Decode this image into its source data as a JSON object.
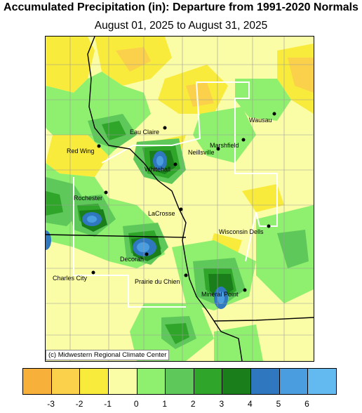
{
  "title": "Accumulated Precipitation (in): Departure from 1991-2020 Normals",
  "subtitle": "August 01, 2025 to August 31, 2025",
  "credit": "(c) Midwestern Regional Climate Center",
  "cities": [
    {
      "name": "Wausau"
    },
    {
      "name": "Eau Claire"
    },
    {
      "name": "Marshfield"
    },
    {
      "name": "Red Wing"
    },
    {
      "name": "Neillsville"
    },
    {
      "name": "Whitehall"
    },
    {
      "name": "Rochester"
    },
    {
      "name": "LaCrosse"
    },
    {
      "name": "Wisconsin Dells"
    },
    {
      "name": "Decorah"
    },
    {
      "name": "Charles City"
    },
    {
      "name": "Prairie du Chien"
    },
    {
      "name": "Mineral Point"
    }
  ],
  "legend": {
    "colors": [
      "#f7b03a",
      "#fbd04a",
      "#f9eb3c",
      "#fbfca6",
      "#8ef06e",
      "#5ec85a",
      "#2fa52a",
      "#1a7f1a",
      "#2f78c0",
      "#4a9ee0",
      "#63baf0"
    ],
    "ticks": [
      "-3",
      "-2",
      "-1",
      "0",
      "1",
      "2",
      "3",
      "4",
      "5",
      "6"
    ]
  }
}
